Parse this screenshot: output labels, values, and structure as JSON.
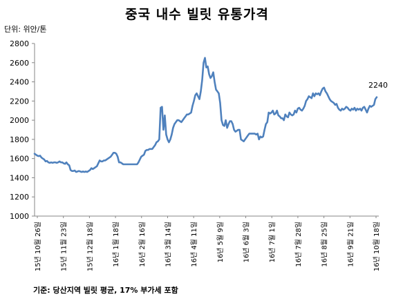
{
  "title": "중국 내수 빌릿 유통가격",
  "unit_label": "단위: 위안/톤",
  "source_note": "기준: 당산지역 빌릿 평균, 17% 부가세 포함",
  "colors": {
    "line": "#4f81bd",
    "axis": "#868686",
    "text": "#000000"
  },
  "chart_data": {
    "type": "line",
    "title": "중국 내수 빌릿 유통가격",
    "xlabel": "",
    "ylabel": "단위: 위안/톤",
    "ylim": [
      1000,
      2800
    ],
    "yticks": [
      1000,
      1200,
      1400,
      1600,
      1800,
      2000,
      2200,
      2400,
      2600,
      2800
    ],
    "grid": false,
    "legend": "none",
    "x_tick_labels": [
      "15년 10월 26일",
      "15년 11월 23일",
      "15년 12월 18일",
      "16년 1월 18일",
      "16년 2월 16일",
      "16년 3월 14일",
      "16년 4월 11일",
      "16년 5월 9일",
      "16년 6월 3일",
      "16년 7월 1일",
      "16년 7월 28일",
      "16년 8월 25일",
      "16년 9월 21일",
      "16년 10월 18일"
    ],
    "series": [
      {
        "values": [
          1650,
          1640,
          1630,
          1625,
          1630,
          1610,
          1600,
          1590,
          1570,
          1575,
          1560,
          1555,
          1560,
          1555,
          1560,
          1560,
          1555,
          1560,
          1570,
          1560,
          1560,
          1550,
          1545,
          1560,
          1540,
          1530,
          1480,
          1470,
          1470,
          1475,
          1460,
          1465,
          1470,
          1465,
          1460,
          1465,
          1460,
          1465,
          1460,
          1470,
          1480,
          1500,
          1490,
          1500,
          1510,
          1520,
          1550,
          1580,
          1570,
          1570,
          1580,
          1580,
          1590,
          1600,
          1610,
          1620,
          1640,
          1660,
          1660,
          1650,
          1620,
          1560,
          1560,
          1550,
          1540,
          1540,
          1540,
          1540,
          1540,
          1540,
          1540,
          1540,
          1540,
          1540,
          1540,
          1560,
          1590,
          1620,
          1630,
          1640,
          1680,
          1690,
          1690,
          1700,
          1700,
          1700,
          1720,
          1740,
          1770,
          1780,
          1800,
          2130,
          2140,
          1900,
          2050,
          1850,
          1800,
          1770,
          1800,
          1850,
          1920,
          1960,
          1980,
          2000,
          2000,
          1990,
          1980,
          2000,
          2020,
          2040,
          2060,
          2060,
          2070,
          2080,
          2150,
          2200,
          2260,
          2280,
          2250,
          2220,
          2300,
          2420,
          2600,
          2650,
          2550,
          2560,
          2480,
          2440,
          2460,
          2500,
          2400,
          2320,
          2300,
          2280,
          2180,
          2000,
          1950,
          1940,
          2000,
          1920,
          1960,
          1990,
          1990,
          1960,
          1900,
          1880,
          1890,
          1900,
          1900,
          1800,
          1790,
          1780,
          1800,
          1820,
          1840,
          1860,
          1860,
          1860,
          1860,
          1860,
          1850,
          1860,
          1800,
          1830,
          1820,
          1830,
          1900,
          1960,
          1980,
          2080,
          2070,
          2080,
          2100,
          2060,
          2070,
          2100,
          2050,
          2040,
          2020,
          2020,
          2000,
          2060,
          2040,
          2030,
          2080,
          2060,
          2050,
          2060,
          2100,
          2080,
          2120,
          2130,
          2110,
          2100,
          2120,
          2150,
          2200,
          2220,
          2250,
          2240,
          2230,
          2280,
          2250,
          2280,
          2270,
          2280,
          2260,
          2300,
          2330,
          2340,
          2300,
          2280,
          2250,
          2220,
          2200,
          2190,
          2180,
          2160,
          2170,
          2130,
          2110,
          2100,
          2120,
          2110,
          2120,
          2140,
          2130,
          2110,
          2100,
          2120,
          2110,
          2130,
          2100,
          2120,
          2110,
          2120,
          2100,
          2130,
          2140,
          2110,
          2080,
          2120,
          2150,
          2140,
          2150,
          2160,
          2220,
          2240
        ]
      }
    ],
    "annotations": [
      {
        "text": "2240",
        "target": "last-point"
      }
    ]
  }
}
